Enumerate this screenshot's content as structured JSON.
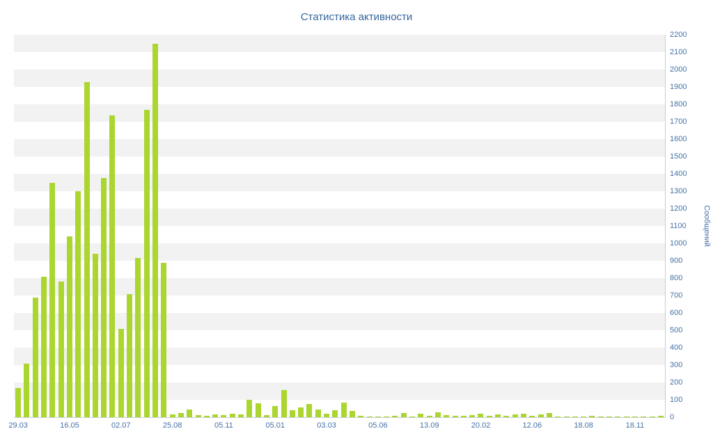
{
  "chart_data": {
    "type": "bar",
    "title": "Статистика активности",
    "ylabel": "Сообщений",
    "xlabel": "",
    "ylim": [
      0,
      2200
    ],
    "y_tick_step": 100,
    "y_ticks": [
      0,
      100,
      200,
      300,
      400,
      500,
      600,
      700,
      800,
      900,
      1000,
      1100,
      1200,
      1300,
      1400,
      1500,
      1600,
      1700,
      1800,
      1900,
      2000,
      2100,
      2200
    ],
    "x_tick_labels": [
      "29.03",
      "16.05",
      "02.07",
      "25.08",
      "05.11",
      "05.01",
      "03.03",
      "05.06",
      "13.09",
      "20.02",
      "12.06",
      "18.08",
      "18.11"
    ],
    "x_tick_every": 6,
    "values": [
      170,
      310,
      690,
      810,
      1350,
      780,
      1040,
      1300,
      1930,
      940,
      1375,
      1735,
      510,
      710,
      915,
      1770,
      2150,
      890,
      15,
      25,
      45,
      12,
      8,
      18,
      12,
      20,
      15,
      100,
      80,
      12,
      65,
      155,
      40,
      55,
      75,
      45,
      20,
      40,
      85,
      35,
      10,
      6,
      4,
      6,
      8,
      25,
      6,
      20,
      8,
      28,
      12,
      8,
      10,
      12,
      22,
      8,
      15,
      10,
      18,
      22,
      8,
      18,
      25,
      6,
      4,
      4,
      4,
      8,
      4,
      6,
      4,
      6,
      4,
      6,
      4,
      8
    ],
    "grid": "horizontal-bands",
    "legend_position": "none",
    "colors": {
      "bar": "#abd52f",
      "band": "#f2f2f2",
      "axis": "#c9ccd1",
      "labels": "#4572a7",
      "title": "#34659c",
      "background": "#ffffff"
    }
  }
}
